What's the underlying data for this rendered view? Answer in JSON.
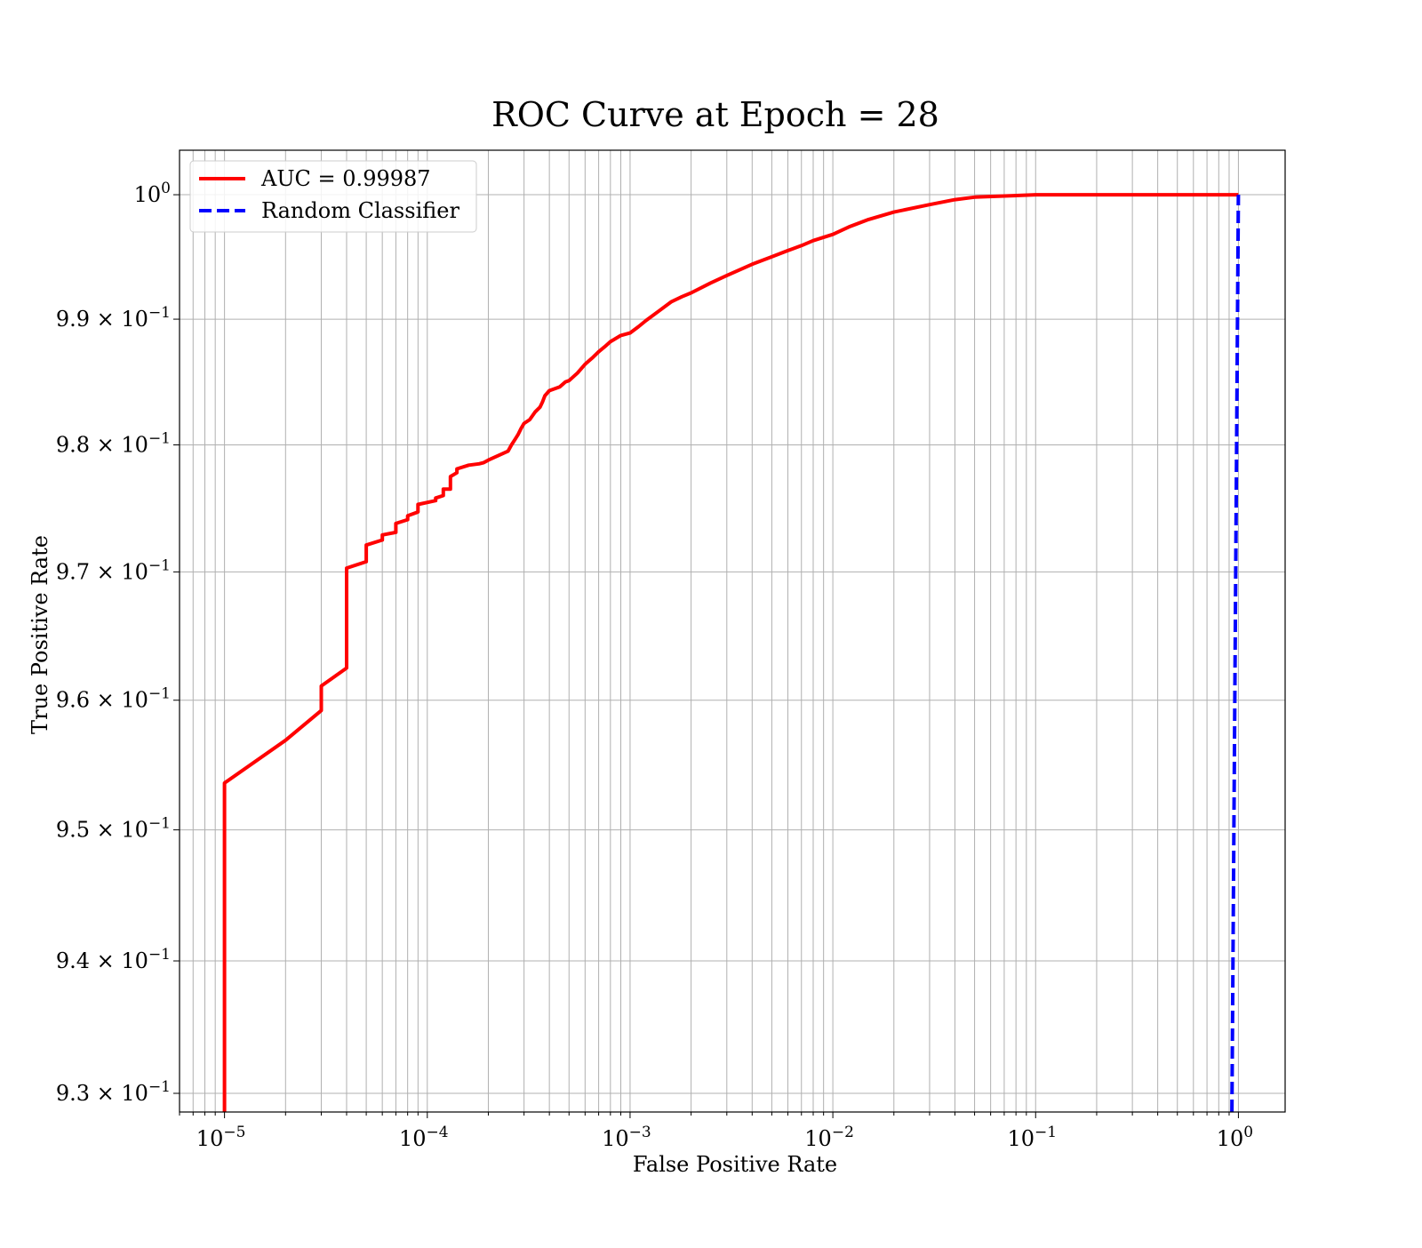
{
  "chart_data": {
    "type": "line",
    "title": "ROC Curve at Epoch = 28",
    "xlabel": "False Positive Rate",
    "ylabel": "True Positive Rate",
    "xscale": "log",
    "yscale": "log",
    "xlim": [
      6e-06,
      1.7
    ],
    "ylim": [
      0.9286,
      1.0036
    ],
    "grid": "both (major and minor)",
    "legend_position": "upper-left",
    "x_ticks": [
      {
        "value": 1e-05,
        "base": "10",
        "exp": "−5"
      },
      {
        "value": 0.0001,
        "base": "10",
        "exp": "−4"
      },
      {
        "value": 0.001,
        "base": "10",
        "exp": "−3"
      },
      {
        "value": 0.01,
        "base": "10",
        "exp": "−2"
      },
      {
        "value": 0.1,
        "base": "10",
        "exp": "−1"
      },
      {
        "value": 1,
        "base": "10",
        "exp": "0"
      }
    ],
    "y_ticks": [
      {
        "value": 1.0,
        "mant": "",
        "base": "10",
        "exp": "0"
      },
      {
        "value": 0.99,
        "mant": "9.9 × ",
        "base": "10",
        "exp": "−1"
      },
      {
        "value": 0.98,
        "mant": "9.8 × ",
        "base": "10",
        "exp": "−1"
      },
      {
        "value": 0.97,
        "mant": "9.7 × ",
        "base": "10",
        "exp": "−1"
      },
      {
        "value": 0.96,
        "mant": "9.6 × ",
        "base": "10",
        "exp": "−1"
      },
      {
        "value": 0.95,
        "mant": "9.5 × ",
        "base": "10",
        "exp": "−1"
      },
      {
        "value": 0.94,
        "mant": "9.4 × ",
        "base": "10",
        "exp": "−1"
      },
      {
        "value": 0.93,
        "mant": "9.3 × ",
        "base": "10",
        "exp": "−1"
      }
    ],
    "series": [
      {
        "name": "AUC = 0.99987",
        "color": "#ff0000",
        "style": "solid",
        "x": [
          1e-05,
          1e-05,
          2e-05,
          3e-05,
          3e-05,
          4e-05,
          4e-05,
          5e-05,
          5e-05,
          6e-05,
          6e-05,
          7e-05,
          7e-05,
          8e-05,
          8e-05,
          9e-05,
          9e-05,
          0.00011,
          0.00011,
          0.00012,
          0.00012,
          0.00013,
          0.00013,
          0.00014,
          0.00014,
          0.00016,
          0.00018,
          0.00019,
          0.0002,
          0.00022,
          0.00025,
          0.00026,
          0.00027,
          0.00028,
          0.00029,
          0.0003,
          0.00032,
          0.00034,
          0.00036,
          0.00037,
          0.00038,
          0.0004,
          0.00045,
          0.00048,
          0.0005,
          0.00055,
          0.0006,
          0.00065,
          0.0007,
          0.00075,
          0.0008,
          0.0009,
          0.001,
          0.0011,
          0.0012,
          0.0014,
          0.0016,
          0.0018,
          0.002,
          0.0025,
          0.003,
          0.004,
          0.005,
          0.006,
          0.007,
          0.008,
          0.01,
          0.012,
          0.015,
          0.02,
          0.03,
          0.04,
          0.05,
          0.07,
          0.1,
          0.15,
          1.0
        ],
        "y": [
          0.9286,
          0.9536,
          0.9569,
          0.9592,
          0.9611,
          0.9625,
          0.9703,
          0.9708,
          0.9721,
          0.9725,
          0.9729,
          0.9731,
          0.9738,
          0.9741,
          0.9744,
          0.9747,
          0.9753,
          0.9756,
          0.9758,
          0.976,
          0.9765,
          0.9765,
          0.9775,
          0.9778,
          0.9781,
          0.9784,
          0.9785,
          0.9786,
          0.9788,
          0.9791,
          0.9795,
          0.98,
          0.9804,
          0.9808,
          0.9813,
          0.9817,
          0.982,
          0.9826,
          0.983,
          0.9834,
          0.9839,
          0.9843,
          0.9846,
          0.985,
          0.9851,
          0.9857,
          0.9864,
          0.9869,
          0.9874,
          0.9878,
          0.9882,
          0.9887,
          0.9889,
          0.9894,
          0.9899,
          0.9907,
          0.9914,
          0.9918,
          0.9921,
          0.9929,
          0.9935,
          0.9944,
          0.995,
          0.9955,
          0.9959,
          0.9963,
          0.9968,
          0.9974,
          0.998,
          0.9986,
          0.9992,
          0.9996,
          0.9998,
          0.9999,
          1.0,
          1.0,
          1.0
        ]
      },
      {
        "name": "Random Classifier",
        "color": "#0000ff",
        "style": "dashed",
        "x": [
          0.9286,
          1.0
        ],
        "y": [
          0.9286,
          1.0
        ]
      }
    ]
  }
}
